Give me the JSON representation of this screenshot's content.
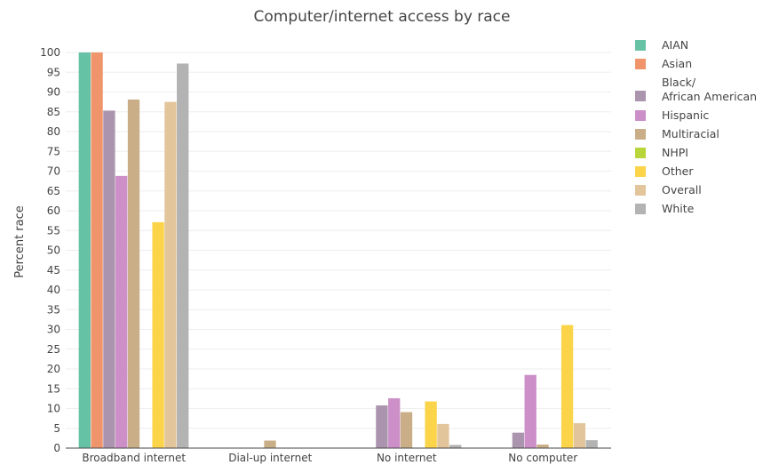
{
  "chart_data": {
    "type": "bar",
    "title": "Computer/internet access by race",
    "ylabel": "Percent race",
    "xlabel": "",
    "ylim": [
      0,
      100
    ],
    "yticks": [
      0,
      5,
      10,
      15,
      20,
      25,
      30,
      35,
      40,
      45,
      50,
      55,
      60,
      65,
      70,
      75,
      80,
      85,
      90,
      95,
      100
    ],
    "grid": true,
    "legend_position": "right",
    "categories": [
      "Broadband internet",
      "Dial-up internet",
      "No internet",
      "No computer"
    ],
    "series": [
      {
        "name": "AIAN",
        "color": "#66c2a5",
        "values": [
          100,
          0,
          0,
          0
        ]
      },
      {
        "name": "Asian",
        "color": "#f0956b",
        "values": [
          100,
          0,
          0,
          0
        ]
      },
      {
        "name": "Black/ African American",
        "label_lines": [
          "Black/",
          "African American"
        ],
        "color": "#ab94ad",
        "values": [
          85.3,
          0,
          10.8,
          3.9
        ]
      },
      {
        "name": "Hispanic",
        "color": "#cc8fc8",
        "values": [
          68.8,
          0,
          12.6,
          18.5
        ]
      },
      {
        "name": "Multiracial",
        "color": "#c9ae88",
        "values": [
          88.1,
          1.9,
          9.1,
          0.9
        ]
      },
      {
        "name": "NHPI",
        "color": "#b8d53a",
        "values": [
          0,
          0,
          0,
          0
        ]
      },
      {
        "name": "Other",
        "color": "#fbd44a",
        "values": [
          57.1,
          0,
          11.8,
          31.1
        ]
      },
      {
        "name": "Overall",
        "color": "#e2c59a",
        "values": [
          87.5,
          0,
          6.1,
          6.3
        ]
      },
      {
        "name": "White",
        "color": "#b3b3b3",
        "values": [
          97.2,
          0,
          0.8,
          2.0
        ]
      }
    ]
  }
}
